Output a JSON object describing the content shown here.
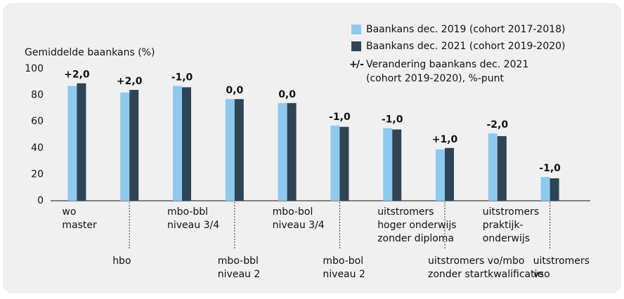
{
  "chart_data": {
    "type": "bar",
    "y_label": "Gemiddelde baankans (%)",
    "categories": [
      [
        "wo",
        "master"
      ],
      [
        "hbo"
      ],
      [
        "mbo-bbl",
        "niveau 3/4"
      ],
      [
        "mbo-bbl",
        "niveau 2"
      ],
      [
        "mbo-bol",
        "niveau 3/4"
      ],
      [
        "mbo-bol",
        "niveau 2"
      ],
      [
        "uitstromers",
        "hoger onderwijs",
        "zonder diploma"
      ],
      [
        "uitstromers vo/mbo",
        "zonder startkwalificatie"
      ],
      [
        "uitstromers",
        "praktijk-",
        "onderwijs"
      ],
      [
        "uitstromers",
        "vso"
      ]
    ],
    "series": [
      {
        "name": "Baankans dec. 2019 (cohort 2017-2018)",
        "color": "#8ec9ee",
        "values": [
          87,
          82,
          87,
          77,
          74,
          57,
          55,
          39,
          51,
          18
        ]
      },
      {
        "name": "Baankans dec. 2021 (cohort 2019-2020)",
        "color": "#2f4454",
        "values": [
          89,
          84,
          86,
          77,
          74,
          56,
          54,
          40,
          49,
          17
        ]
      }
    ],
    "changes": {
      "name": [
        "Verandering baankans dec. 2021",
        "(cohort 2019-2020), %-punt"
      ],
      "symbol_plus": "+",
      "symbol_minus": "/-",
      "colors": {
        "positive": "#3fae2a",
        "negative": "#e0173f",
        "zero": "#9a9a9a"
      },
      "values": [
        2,
        2,
        -1,
        0,
        0,
        -1,
        -1,
        1,
        -2,
        -1
      ],
      "value_labels": [
        "+2,0",
        "+2,0",
        "-1,0",
        "0,0",
        "0,0",
        "-1,0",
        "-1,0",
        "+1,0",
        "-2,0",
        "-1,0"
      ]
    },
    "ylim": [
      0,
      100
    ],
    "yticks": [
      0,
      20,
      40,
      60,
      80,
      100
    ]
  }
}
